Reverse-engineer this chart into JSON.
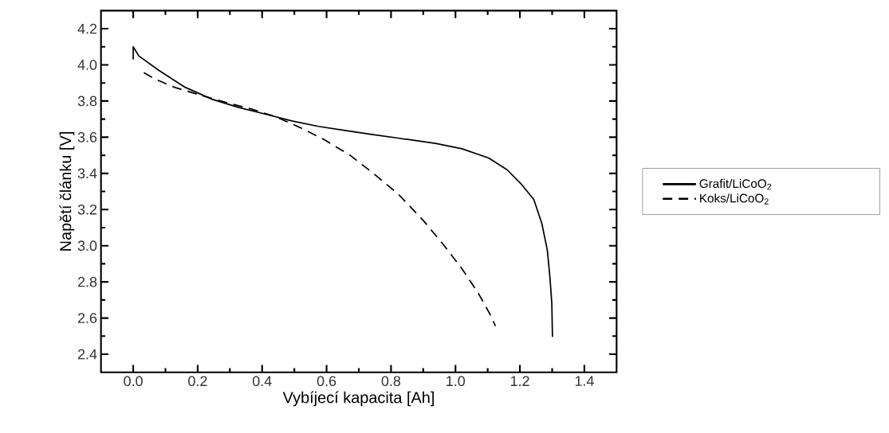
{
  "chart_data": {
    "type": "line",
    "xlabel": "Vybíjecí kapacita [Ah]",
    "ylabel": "Napětí článku [V]",
    "xlim": [
      -0.1,
      1.5
    ],
    "ylim": [
      2.3,
      4.3
    ],
    "xticks": [
      {
        "value": 0,
        "label": "0.0"
      },
      0.2,
      0.4,
      0.6,
      0.8,
      {
        "value": 1,
        "label": "1.0"
      },
      1.2,
      1.4
    ],
    "yticks": [
      2.4,
      2.6,
      2.8,
      {
        "value": 3,
        "label": "3.0"
      },
      3.2,
      3.4,
      3.6,
      3.8,
      {
        "value": 4,
        "label": "4.0"
      },
      4.2
    ],
    "legend": "right",
    "grid": false,
    "series": [
      {
        "name": "Grafit/LiCoO$_{2}$",
        "color": "#000000",
        "line_style": "solid",
        "x": [
          0.0,
          0.0,
          0.017,
          0.079,
          0.161,
          0.244,
          0.326,
          0.409,
          0.492,
          0.574,
          0.657,
          0.74,
          0.822,
          0.938,
          1.02,
          1.103,
          1.161,
          1.202,
          1.243,
          1.268,
          1.285,
          1.293,
          1.299,
          1.301
        ],
        "values": [
          4.03,
          4.1,
          4.05,
          3.97,
          3.876,
          3.81,
          3.765,
          3.728,
          3.69,
          3.66,
          3.637,
          3.615,
          3.595,
          3.566,
          3.536,
          3.485,
          3.419,
          3.345,
          3.256,
          3.123,
          2.976,
          2.828,
          2.68,
          2.496
        ]
      },
      {
        "name": "Koks/LiCoO$_{2}$",
        "color": "#000000",
        "line_style": "dashed",
        "x": [
          0.033,
          0.066,
          0.128,
          0.211,
          0.293,
          0.368,
          0.442,
          0.517,
          0.591,
          0.673,
          0.748,
          0.822,
          0.901,
          0.963,
          1.02,
          1.07,
          1.107,
          1.124
        ],
        "values": [
          3.957,
          3.923,
          3.876,
          3.831,
          3.79,
          3.755,
          3.713,
          3.654,
          3.588,
          3.5,
          3.396,
          3.286,
          3.138,
          3.005,
          2.873,
          2.74,
          2.622,
          2.556
        ]
      }
    ]
  }
}
